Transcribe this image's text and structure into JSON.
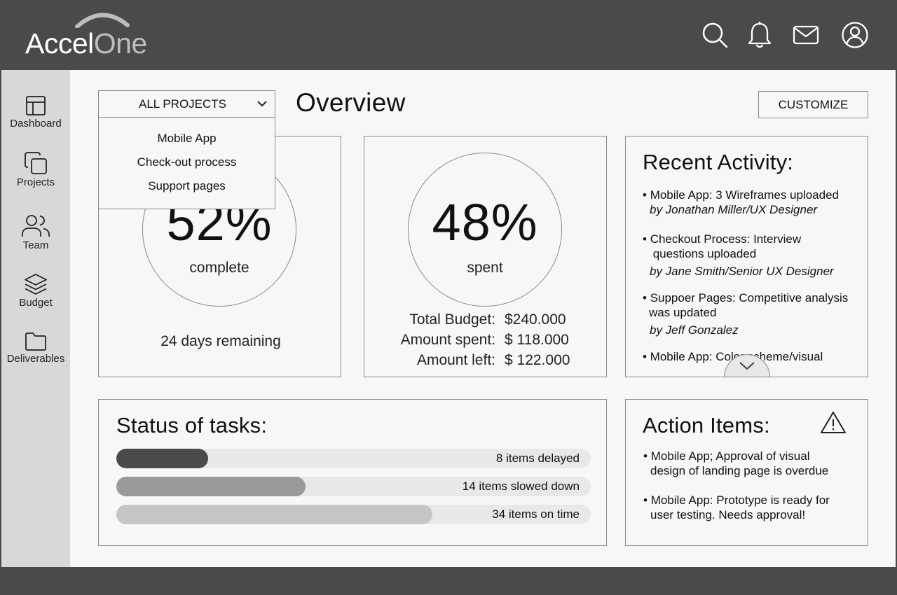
{
  "app": {
    "logo_part1": "Accel",
    "logo_part2": "One"
  },
  "header": {
    "icons": [
      "search-icon",
      "bell-icon",
      "mail-icon",
      "user-icon"
    ]
  },
  "sidebar": {
    "items": [
      {
        "label": "Dashboard",
        "icon": "layout-icon"
      },
      {
        "label": "Projects",
        "icon": "copy-icon"
      },
      {
        "label": "Team",
        "icon": "users-icon"
      },
      {
        "label": "Budget",
        "icon": "layers-icon"
      },
      {
        "label": "Deliverables",
        "icon": "folder-icon"
      }
    ]
  },
  "toolbar": {
    "project_select": "ALL PROJECTS",
    "project_options": [
      "Mobile App",
      "Check-out process",
      "Support pages"
    ],
    "title": "Overview",
    "customize_label": "CUSTOMIZE"
  },
  "progress": {
    "percent_label": "52%",
    "caption": "complete",
    "remaining": "24 days remaining"
  },
  "budget": {
    "percent_label": "48%",
    "caption": "spent",
    "rows": [
      {
        "label": "Total Budget:",
        "value": "$240.000"
      },
      {
        "label": "Amount spent:",
        "value": "$ 118.000"
      },
      {
        "label": "Amount left:",
        "value": "$ 122.000"
      }
    ]
  },
  "activity": {
    "title": "Recent Activity:",
    "items": [
      {
        "line1": "Mobile App: 3 Wireframes uploaded",
        "line2": "",
        "by": "by Jonathan Miller/UX Designer"
      },
      {
        "line1": "Checkout Process: Interview",
        "line2": " questions uploaded",
        "by": "by Jane Smith/Senior UX Designer"
      },
      {
        "line1": "Suppoer Pages: Competitive analysis",
        "line2": "was updated",
        "by": "by Jeff Gonzalez"
      },
      {
        "line1": "Mobile App: Color scheme/visual",
        "line2": "",
        "by": ""
      }
    ]
  },
  "tasks": {
    "title": "Status of tasks:",
    "bars": [
      {
        "label": "8 items delayed",
        "fraction": 0.193,
        "color": "#4a4a4a"
      },
      {
        "label": "14 items slowed down",
        "fraction": 0.399,
        "color": "#9a9a9a"
      },
      {
        "label": "34 items on time",
        "fraction": 0.666,
        "color": "#c6c6c8"
      }
    ]
  },
  "actions": {
    "title": "Action Items:",
    "items": [
      {
        "line1": "Mobile App; Approval of visual",
        "line2": "design of landing page is overdue"
      },
      {
        "line1": "Mobile App: Prototype is ready for",
        "line2": "user testing. Needs approval!"
      }
    ]
  }
}
